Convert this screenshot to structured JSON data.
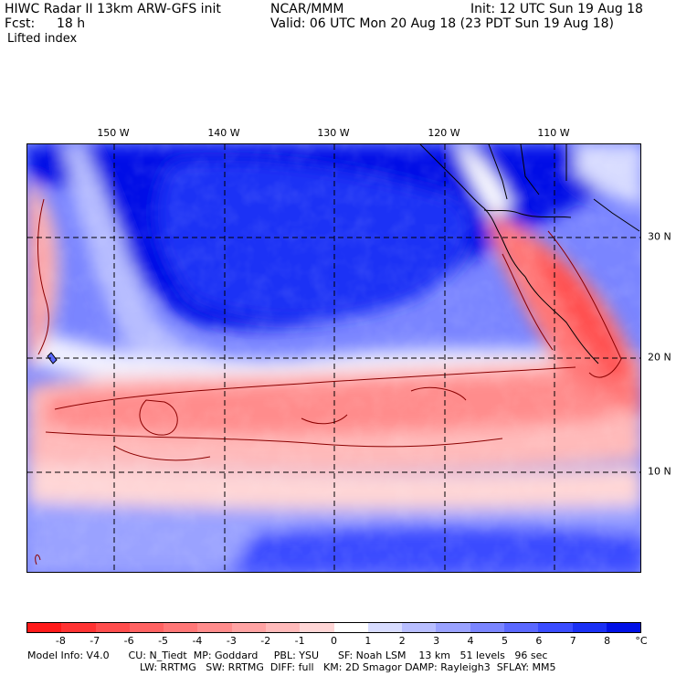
{
  "header": {
    "title": "HIWC Radar II 13km ARW-GFS init",
    "fcst_label": "Fcst:",
    "fcst_value": "18 h",
    "field": "Lifted index",
    "source": "NCAR/MMM",
    "init": "Init: 12 UTC Sun 19 Aug 18",
    "valid": "Valid: 06 UTC Mon 20 Aug 18 (23 PDT Sun 19 Aug 18)"
  },
  "map": {
    "lon_labels": [
      "150 W",
      "140 W",
      "130 W",
      "120 W",
      "110 W"
    ],
    "lat_labels": [
      "30 N",
      "20 N",
      "10 N"
    ]
  },
  "colorbar": {
    "tick_labels": [
      "-8",
      "-7",
      "-6",
      "-5",
      "-4",
      "-3",
      "-2",
      "-1",
      "0",
      "1",
      "2",
      "3",
      "4",
      "5",
      "6",
      "7",
      "8"
    ],
    "unit": "°C",
    "colors": [
      "#ff1a1a",
      "#ff3333",
      "#ff4d4d",
      "#ff6262",
      "#ff7777",
      "#ff8c8c",
      "#ffa3a3",
      "#ffbaba",
      "#ffd6d6",
      "#ffffff",
      "#d8dcff",
      "#b8beff",
      "#9aa2ff",
      "#7a85ff",
      "#5a68ff",
      "#3a4cff",
      "#1a30f5",
      "#0010e6"
    ]
  },
  "footer": {
    "line1": "Model Info: V4.0      CU: N_Tiedt  MP: Goddard     PBL: YSU      SF: Noah LSM    13 km   51 levels   96 sec",
    "line2": "LW: RRTMG   SW: RRTMG  DIFF: full   KM: 2D Smagor DAMP: Rayleigh3  SFLAY: MM5"
  }
}
